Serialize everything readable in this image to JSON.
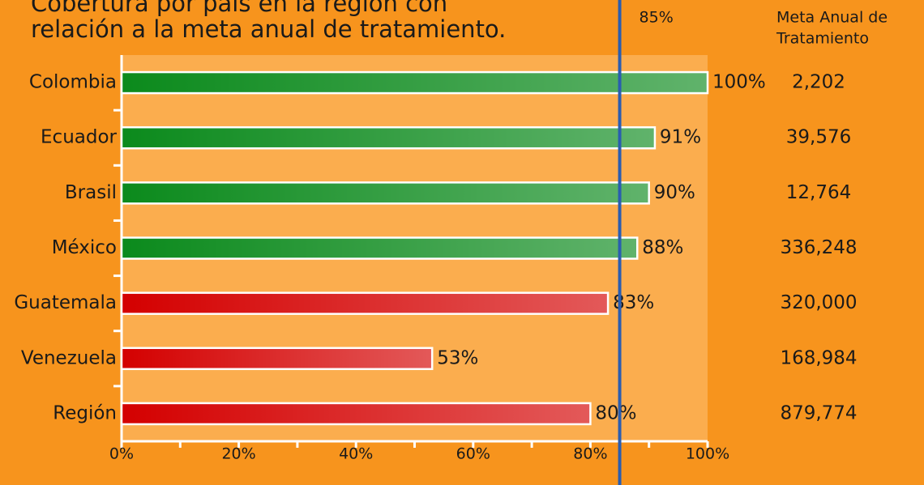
{
  "chart_data": {
    "type": "bar",
    "orientation": "horizontal",
    "title": [
      "Cobertura por país en la región con",
      "relación a la meta anual de tratamiento."
    ],
    "categories": [
      "Colombia",
      "Ecuador",
      "Brasil",
      "México",
      "Guatemala",
      "Venezuela",
      "Región"
    ],
    "values": [
      100,
      91,
      90,
      88,
      83,
      53,
      80
    ],
    "value_labels": [
      "100%",
      "91%",
      "90%",
      "88%",
      "83%",
      "53%",
      "80%"
    ],
    "colors": [
      "#0b8a1c",
      "#0b8a1c",
      "#0b8a1c",
      "#0b8a1c",
      "#d40000",
      "#d40000",
      "#d40000"
    ],
    "xlim": [
      0,
      100
    ],
    "xticks": [
      {
        "value": 0,
        "label": "0%"
      },
      {
        "value": 20,
        "label": "20%"
      },
      {
        "value": 40,
        "label": "40%"
      },
      {
        "value": 60,
        "label": "60%"
      },
      {
        "value": 80,
        "label": "80%"
      },
      {
        "value": 100,
        "label": "100%"
      }
    ],
    "reference_line": {
      "value": 85,
      "label": "85%",
      "color": "#2a5db0"
    },
    "meta": {
      "title": [
        "Meta Anual de",
        "Tratamiento"
      ],
      "values": [
        "2,202",
        "39,576",
        "12,764",
        "336,248",
        "320,000",
        "168,984",
        "879,774"
      ]
    }
  }
}
